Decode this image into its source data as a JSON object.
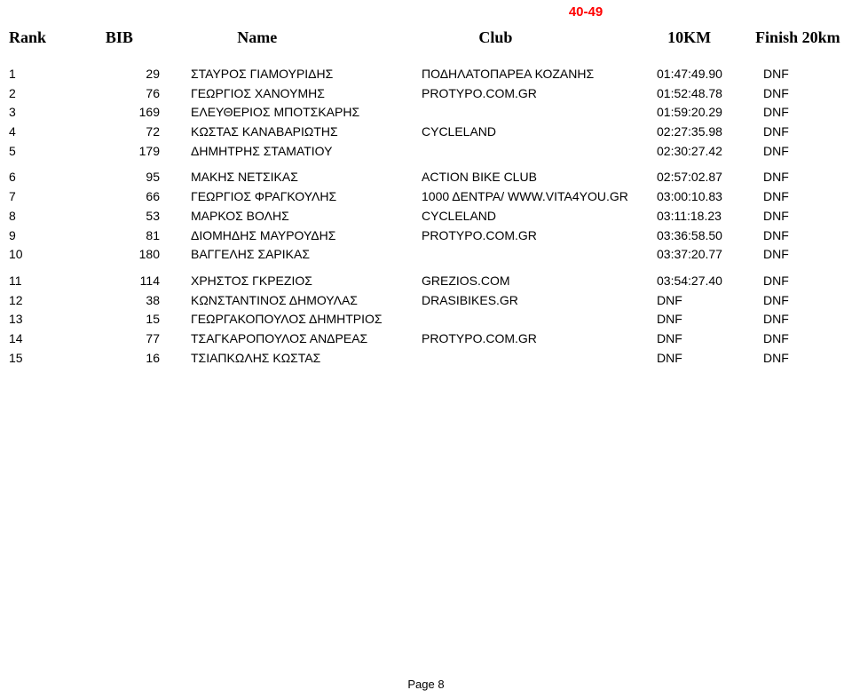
{
  "category": "40-49",
  "header": {
    "rank": "Rank",
    "bib": "BIB",
    "name": "Name",
    "club": "Club",
    "tenKm": "10KM",
    "finish": "Finish 20km"
  },
  "rows": [
    {
      "rank": "1",
      "bib": "29",
      "name": "ΣΤΑΥΡΟΣ ΓΙΑΜΟΥΡΙΔΗΣ",
      "club": "ΠΟΔΗΛΑΤΟΠΑΡΕΑ ΚΟΖΑΝΗΣ",
      "tenKm": "01:47:49.90",
      "finish": "DNF",
      "gapAfter": false
    },
    {
      "rank": "2",
      "bib": "76",
      "name": "ΓΕΩΡΓΙΟΣ ΧΑΝΟΥΜΗΣ",
      "club": "PROTYPO.COM.GR",
      "tenKm": "01:52:48.78",
      "finish": "DNF",
      "gapAfter": false
    },
    {
      "rank": "3",
      "bib": "169",
      "name": "ΕΛΕΥΘΕΡΙΟΣ ΜΠΟΤΣΚΑΡΗΣ",
      "club": "",
      "tenKm": "01:59:20.29",
      "finish": "DNF",
      "gapAfter": false
    },
    {
      "rank": "4",
      "bib": "72",
      "name": "ΚΩΣΤΑΣ ΚΑΝΑΒΑΡΙΩΤΗΣ",
      "club": "CYCLELAND",
      "tenKm": "02:27:35.98",
      "finish": "DNF",
      "gapAfter": false
    },
    {
      "rank": "5",
      "bib": "179",
      "name": "ΔΗΜΗΤΡΗΣ ΣΤΑΜΑΤΙΟΥ",
      "club": "",
      "tenKm": "02:30:27.42",
      "finish": "DNF",
      "gapAfter": true
    },
    {
      "rank": "6",
      "bib": "95",
      "name": "ΜΑΚΗΣ ΝΕΤΣΙΚΑΣ",
      "club": "ACTION BIKE CLUB",
      "tenKm": "02:57:02.87",
      "finish": "DNF",
      "gapAfter": false
    },
    {
      "rank": "7",
      "bib": "66",
      "name": "ΓΕΩΡΓΙΟΣ ΦΡΑΓΚΟΥΛΗΣ",
      "club": "1000 ΔΕΝΤΡΑ/ WWW.VITA4YOU.GR",
      "tenKm": "03:00:10.83",
      "finish": "DNF",
      "gapAfter": false
    },
    {
      "rank": "8",
      "bib": "53",
      "name": "ΜΑΡΚΟΣ ΒΟΛΗΣ",
      "club": "CYCLELAND",
      "tenKm": "03:11:18.23",
      "finish": "DNF",
      "gapAfter": false
    },
    {
      "rank": "9",
      "bib": "81",
      "name": "ΔΙΟΜΗΔΗΣ ΜΑΥΡΟΥΔΗΣ",
      "club": "PROTYPO.COM.GR",
      "tenKm": "03:36:58.50",
      "finish": "DNF",
      "gapAfter": false
    },
    {
      "rank": "10",
      "bib": "180",
      "name": "ΒΑΓΓΕΛΗΣ ΣΑΡΙΚΑΣ",
      "club": "",
      "tenKm": "03:37:20.77",
      "finish": "DNF",
      "gapAfter": true
    },
    {
      "rank": "11",
      "bib": "114",
      "name": "ΧΡΗΣΤΟΣ ΓΚΡΕΖΙΟΣ",
      "club": "GREZIOS.COM",
      "tenKm": "03:54:27.40",
      "finish": "DNF",
      "gapAfter": false
    },
    {
      "rank": "12",
      "bib": "38",
      "name": "ΚΩΝΣΤΑΝΤΙΝΟΣ ΔΗΜΟΥΛΑΣ",
      "club": "DRASIBIKES.GR",
      "tenKm": "DNF",
      "finish": "DNF",
      "gapAfter": false
    },
    {
      "rank": "13",
      "bib": "15",
      "name": "ΓΕΩΡΓΑΚΟΠΟΥΛΟΣ ΔΗΜΗΤΡΙΟΣ",
      "club": "",
      "tenKm": "DNF",
      "finish": "DNF",
      "gapAfter": false
    },
    {
      "rank": "14",
      "bib": "77",
      "name": "ΤΣΑΓΚΑΡΟΠΟΥΛΟΣ ΑΝΔΡΕΑΣ",
      "club": "PROTYPO.COM.GR",
      "tenKm": "DNF",
      "finish": "DNF",
      "gapAfter": false
    },
    {
      "rank": "15",
      "bib": "16",
      "name": "ΤΣΙΑΠΚΩΛΗΣ ΚΩΣΤΑΣ",
      "club": "",
      "tenKm": "DNF",
      "finish": "DNF",
      "gapAfter": false
    }
  ],
  "footer": "Page 8",
  "style": {
    "categoryColor": "#ff0000",
    "textColor": "#000000",
    "background": "#ffffff"
  }
}
